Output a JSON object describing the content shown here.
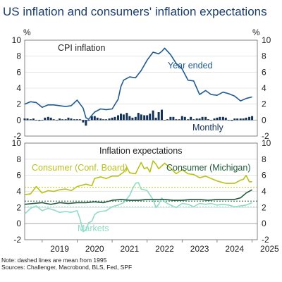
{
  "title": "US inflation and consumers' inflation expectations",
  "unit_left": "%",
  "unit_right": "%",
  "notes": [
    "Note: dashed lines are mean from 1995",
    "Sources: Challenger, Macrobond, BLS, Fed, SPF"
  ],
  "colors": {
    "title": "#1a3d6b",
    "cpi": "#1e5b93",
    "monthly": "#13335a",
    "conf_board": "#b9c11a",
    "michigan": "#1f5a3d",
    "markets": "#8fdcc6",
    "frame": "#666666",
    "grid": "#d6d6d6"
  },
  "chart_data": [
    {
      "type": "line",
      "panel_title": "CPI inflation",
      "x_ticks": [
        "2019",
        "2020",
        "2021",
        "2022",
        "2023",
        "2024",
        "2025"
      ],
      "ylim": [
        -2,
        10
      ],
      "y_ticks": [
        -2,
        0,
        2,
        4,
        6,
        8,
        10
      ],
      "grid": true,
      "series": [
        {
          "name": "Year ended",
          "chart_type": "line",
          "x": [
            2018.5,
            2018.67,
            2018.83,
            2019.0,
            2019.17,
            2019.33,
            2019.5,
            2019.67,
            2019.83,
            2020.0,
            2020.17,
            2020.25,
            2020.33,
            2020.42,
            2020.5,
            2020.67,
            2020.83,
            2021.0,
            2021.17,
            2021.25,
            2021.33,
            2021.5,
            2021.67,
            2021.83,
            2022.0,
            2022.17,
            2022.33,
            2022.42,
            2022.5,
            2022.67,
            2022.83,
            2023.0,
            2023.17,
            2023.33,
            2023.5,
            2023.67,
            2023.83,
            2024.0,
            2024.17,
            2024.33,
            2024.5,
            2024.67,
            2024.83,
            2025.0
          ],
          "y": [
            2.0,
            2.3,
            2.2,
            1.6,
            1.9,
            1.9,
            1.8,
            1.7,
            1.8,
            2.5,
            1.5,
            0.3,
            0.1,
            0.6,
            1.0,
            1.4,
            1.3,
            1.4,
            2.6,
            4.2,
            5.0,
            5.4,
            5.3,
            6.2,
            7.5,
            8.5,
            8.3,
            8.6,
            9.0,
            8.2,
            7.1,
            6.4,
            5.0,
            4.9,
            3.2,
            3.7,
            3.2,
            3.1,
            3.5,
            3.3,
            3.0,
            2.4,
            2.7,
            2.9
          ]
        },
        {
          "name": "Monthly",
          "chart_type": "bar",
          "x": [
            2018.5,
            2018.58,
            2018.67,
            2018.75,
            2018.83,
            2018.92,
            2019.0,
            2019.08,
            2019.17,
            2019.25,
            2019.33,
            2019.42,
            2019.5,
            2019.58,
            2019.67,
            2019.75,
            2019.83,
            2019.92,
            2020.0,
            2020.08,
            2020.17,
            2020.25,
            2020.33,
            2020.42,
            2020.5,
            2020.58,
            2020.67,
            2020.75,
            2020.83,
            2020.92,
            2021.0,
            2021.08,
            2021.17,
            2021.25,
            2021.33,
            2021.42,
            2021.5,
            2021.58,
            2021.67,
            2021.75,
            2021.83,
            2021.92,
            2022.0,
            2022.08,
            2022.17,
            2022.25,
            2022.33,
            2022.42,
            2022.5,
            2022.58,
            2022.67,
            2022.75,
            2022.83,
            2022.92,
            2023.0,
            2023.08,
            2023.17,
            2023.25,
            2023.33,
            2023.42,
            2023.5,
            2023.58,
            2023.67,
            2023.75,
            2023.83,
            2023.92,
            2024.0,
            2024.08,
            2024.17,
            2024.25,
            2024.33,
            2024.42,
            2024.5,
            2024.58,
            2024.67,
            2024.75,
            2024.83,
            2024.92,
            2025.0
          ],
          "y": [
            0.2,
            0.2,
            0.1,
            0.2,
            0.0,
            -0.1,
            0.0,
            0.3,
            0.4,
            0.3,
            0.1,
            0.0,
            0.2,
            0.1,
            0.1,
            0.3,
            0.2,
            0.1,
            0.1,
            0.1,
            -0.3,
            -0.7,
            -0.1,
            0.5,
            0.5,
            0.3,
            0.2,
            0.1,
            0.1,
            0.2,
            0.3,
            0.4,
            0.6,
            0.8,
            0.7,
            0.9,
            0.5,
            0.3,
            0.4,
            0.9,
            0.7,
            0.6,
            0.6,
            0.8,
            1.2,
            0.3,
            1.0,
            1.3,
            0.0,
            0.1,
            0.4,
            0.4,
            0.1,
            0.1,
            0.5,
            0.4,
            0.1,
            0.4,
            0.1,
            0.2,
            0.2,
            0.4,
            0.4,
            0.1,
            0.0,
            0.2,
            0.3,
            0.4,
            0.4,
            0.3,
            0.0,
            -0.1,
            0.2,
            0.2,
            0.2,
            0.2,
            0.3,
            0.4,
            0.5
          ]
        }
      ]
    },
    {
      "type": "line",
      "panel_title": "Inflation expectations",
      "x_ticks": [
        "2019",
        "2020",
        "2021",
        "2022",
        "2023",
        "2024",
        "2025"
      ],
      "ylim": [
        -2,
        10
      ],
      "y_ticks": [
        -2,
        0,
        2,
        4,
        6,
        8,
        10
      ],
      "grid": true,
      "series": [
        {
          "name": "Consumer (Conf. Board)",
          "x": [
            2018.5,
            2018.67,
            2018.83,
            2019.0,
            2019.17,
            2019.33,
            2019.5,
            2019.67,
            2019.83,
            2020.0,
            2020.25,
            2020.42,
            2020.5,
            2020.67,
            2020.83,
            2021.0,
            2021.17,
            2021.33,
            2021.42,
            2021.5,
            2021.67,
            2021.83,
            2021.92,
            2022.0,
            2022.08,
            2022.17,
            2022.25,
            2022.33,
            2022.5,
            2022.67,
            2022.83,
            2023.0,
            2023.17,
            2023.33,
            2023.5,
            2023.67,
            2023.83,
            2024.0,
            2024.25,
            2024.5,
            2024.67,
            2024.75,
            2024.83,
            2024.92,
            2025.0
          ],
          "y": [
            3.6,
            3.7,
            4.6,
            3.8,
            4.1,
            4.0,
            4.2,
            4.3,
            4.1,
            4.6,
            4.9,
            4.7,
            5.6,
            5.8,
            5.6,
            5.9,
            5.9,
            6.4,
            7.0,
            6.3,
            6.2,
            7.6,
            6.8,
            7.0,
            6.4,
            7.8,
            7.4,
            6.8,
            7.5,
            6.9,
            6.2,
            6.7,
            6.2,
            6.1,
            5.7,
            5.9,
            5.6,
            5.3,
            5.0,
            5.0,
            5.4,
            5.5,
            6.0,
            5.2,
            5.2
          ]
        },
        {
          "name": "Consumer (Michigan)",
          "x": [
            2018.5,
            2018.75,
            2019.0,
            2019.25,
            2019.5,
            2019.75,
            2020.0,
            2020.25,
            2020.5,
            2020.75,
            2021.0,
            2021.25,
            2021.5,
            2021.75,
            2022.0,
            2022.25,
            2022.5,
            2022.75,
            2023.0,
            2023.25,
            2023.5,
            2023.75,
            2024.0,
            2024.25,
            2024.5,
            2024.67,
            2024.83,
            2025.0
          ],
          "y": [
            2.4,
            2.5,
            2.6,
            2.4,
            2.6,
            2.5,
            2.6,
            2.6,
            2.7,
            2.6,
            2.9,
            3.0,
            2.9,
            2.9,
            3.0,
            3.0,
            3.0,
            2.9,
            2.9,
            3.0,
            3.0,
            2.9,
            3.0,
            3.0,
            3.0,
            3.2,
            3.8,
            4.2
          ]
        },
        {
          "name": "Markets",
          "x": [
            2018.5,
            2018.67,
            2018.83,
            2019.0,
            2019.17,
            2019.33,
            2019.5,
            2019.67,
            2019.83,
            2020.0,
            2020.08,
            2020.17,
            2020.25,
            2020.33,
            2020.42,
            2020.5,
            2020.58,
            2020.67,
            2020.83,
            2021.0,
            2021.17,
            2021.33,
            2021.5,
            2021.58,
            2021.67,
            2021.75,
            2021.83,
            2022.0,
            2022.17,
            2022.25,
            2022.33,
            2022.42,
            2022.5,
            2022.67,
            2022.83,
            2023.0,
            2023.17,
            2023.33,
            2023.5,
            2023.67,
            2023.83,
            2024.0,
            2024.17,
            2024.33,
            2024.5,
            2024.67,
            2024.83,
            2025.0
          ],
          "y": [
            1.2,
            1.9,
            2.2,
            1.6,
            1.9,
            1.7,
            1.4,
            1.5,
            1.4,
            1.6,
            0.6,
            -1.0,
            -0.8,
            0.1,
            0.3,
            1.1,
            1.4,
            1.5,
            1.6,
            2.1,
            2.3,
            2.6,
            3.5,
            4.3,
            5.0,
            5.1,
            4.3,
            4.1,
            3.0,
            2.0,
            2.4,
            3.2,
            2.7,
            2.3,
            2.0,
            2.5,
            2.4,
            2.1,
            2.5,
            2.4,
            2.5,
            2.3,
            2.4,
            2.3,
            2.1,
            2.2,
            2.3,
            2.6
          ]
        }
      ],
      "mean_lines": [
        {
          "series": "Consumer (Conf. Board)",
          "y": 4.5
        },
        {
          "series": "Consumer (Michigan)",
          "y": 2.8
        },
        {
          "series": "Markets",
          "y": 2.1
        }
      ]
    }
  ]
}
